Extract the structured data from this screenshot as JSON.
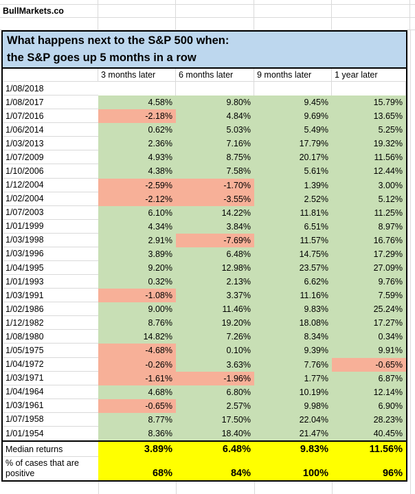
{
  "brand": "BullMarkets.co",
  "title": {
    "line1": "What happens next to the S&P 500 when:",
    "line2": "the S&P goes up 5 months in a row"
  },
  "columns": [
    "3 months later",
    "6 months later",
    "9 months later",
    "1 year later"
  ],
  "rows": [
    {
      "date": "1/08/2018",
      "values": [
        "",
        "",
        "",
        ""
      ]
    },
    {
      "date": "1/08/2017",
      "values": [
        "4.58%",
        "9.80%",
        "9.45%",
        "15.79%"
      ]
    },
    {
      "date": "1/07/2016",
      "values": [
        "-2.18%",
        "4.84%",
        "9.69%",
        "13.65%"
      ]
    },
    {
      "date": "1/06/2014",
      "values": [
        "0.62%",
        "5.03%",
        "5.49%",
        "5.25%"
      ]
    },
    {
      "date": "1/03/2013",
      "values": [
        "2.36%",
        "7.16%",
        "17.79%",
        "19.32%"
      ]
    },
    {
      "date": "1/07/2009",
      "values": [
        "4.93%",
        "8.75%",
        "20.17%",
        "11.56%"
      ]
    },
    {
      "date": "1/10/2006",
      "values": [
        "4.38%",
        "7.58%",
        "5.61%",
        "12.44%"
      ]
    },
    {
      "date": "1/12/2004",
      "values": [
        "-2.59%",
        "-1.70%",
        "1.39%",
        "3.00%"
      ]
    },
    {
      "date": "1/02/2004",
      "values": [
        "-2.12%",
        "-3.55%",
        "2.52%",
        "5.12%"
      ]
    },
    {
      "date": "1/07/2003",
      "values": [
        "6.10%",
        "14.22%",
        "11.81%",
        "11.25%"
      ]
    },
    {
      "date": "1/01/1999",
      "values": [
        "4.34%",
        "3.84%",
        "6.51%",
        "8.97%"
      ]
    },
    {
      "date": "1/03/1998",
      "values": [
        "2.91%",
        "-7.69%",
        "11.57%",
        "16.76%"
      ]
    },
    {
      "date": "1/03/1996",
      "values": [
        "3.89%",
        "6.48%",
        "14.75%",
        "17.29%"
      ]
    },
    {
      "date": "1/04/1995",
      "values": [
        "9.20%",
        "12.98%",
        "23.57%",
        "27.09%"
      ]
    },
    {
      "date": "1/01/1993",
      "values": [
        "0.32%",
        "2.13%",
        "6.62%",
        "9.76%"
      ]
    },
    {
      "date": "1/03/1991",
      "values": [
        "-1.08%",
        "3.37%",
        "11.16%",
        "7.59%"
      ]
    },
    {
      "date": "1/02/1986",
      "values": [
        "9.00%",
        "11.46%",
        "9.83%",
        "25.24%"
      ]
    },
    {
      "date": "1/12/1982",
      "values": [
        "8.76%",
        "19.20%",
        "18.08%",
        "17.27%"
      ]
    },
    {
      "date": "1/08/1980",
      "values": [
        "14.82%",
        "7.26%",
        "8.34%",
        "0.34%"
      ]
    },
    {
      "date": "1/05/1975",
      "values": [
        "-4.68%",
        "0.10%",
        "9.39%",
        "9.91%"
      ]
    },
    {
      "date": "1/04/1972",
      "values": [
        "-0.26%",
        "3.63%",
        "7.76%",
        "-0.65%"
      ]
    },
    {
      "date": "1/03/1971",
      "values": [
        "-1.61%",
        "-1.96%",
        "1.77%",
        "6.87%"
      ]
    },
    {
      "date": "1/04/1964",
      "values": [
        "4.68%",
        "6.80%",
        "10.19%",
        "12.14%"
      ]
    },
    {
      "date": "1/03/1961",
      "values": [
        "-0.65%",
        "2.57%",
        "9.98%",
        "6.90%"
      ]
    },
    {
      "date": "1/07/1958",
      "values": [
        "8.77%",
        "17.50%",
        "22.04%",
        "28.23%"
      ]
    },
    {
      "date": "1/01/1954",
      "values": [
        "8.36%",
        "18.40%",
        "21.47%",
        "40.45%"
      ]
    }
  ],
  "summary": {
    "median_label": "Median returns",
    "median_values": [
      "3.89%",
      "6.48%",
      "9.83%",
      "11.56%"
    ],
    "pct_label": "% of cases that are positive",
    "pct_values": [
      "68%",
      "84%",
      "100%",
      "96%"
    ]
  },
  "colors": {
    "positive_fill": "#c8dfb5",
    "negative_fill": "#f7b098",
    "title_fill": "#bdd7ee",
    "summary_fill": "#ffff00",
    "gridline": "#d9d9d9",
    "border": "#000000"
  }
}
